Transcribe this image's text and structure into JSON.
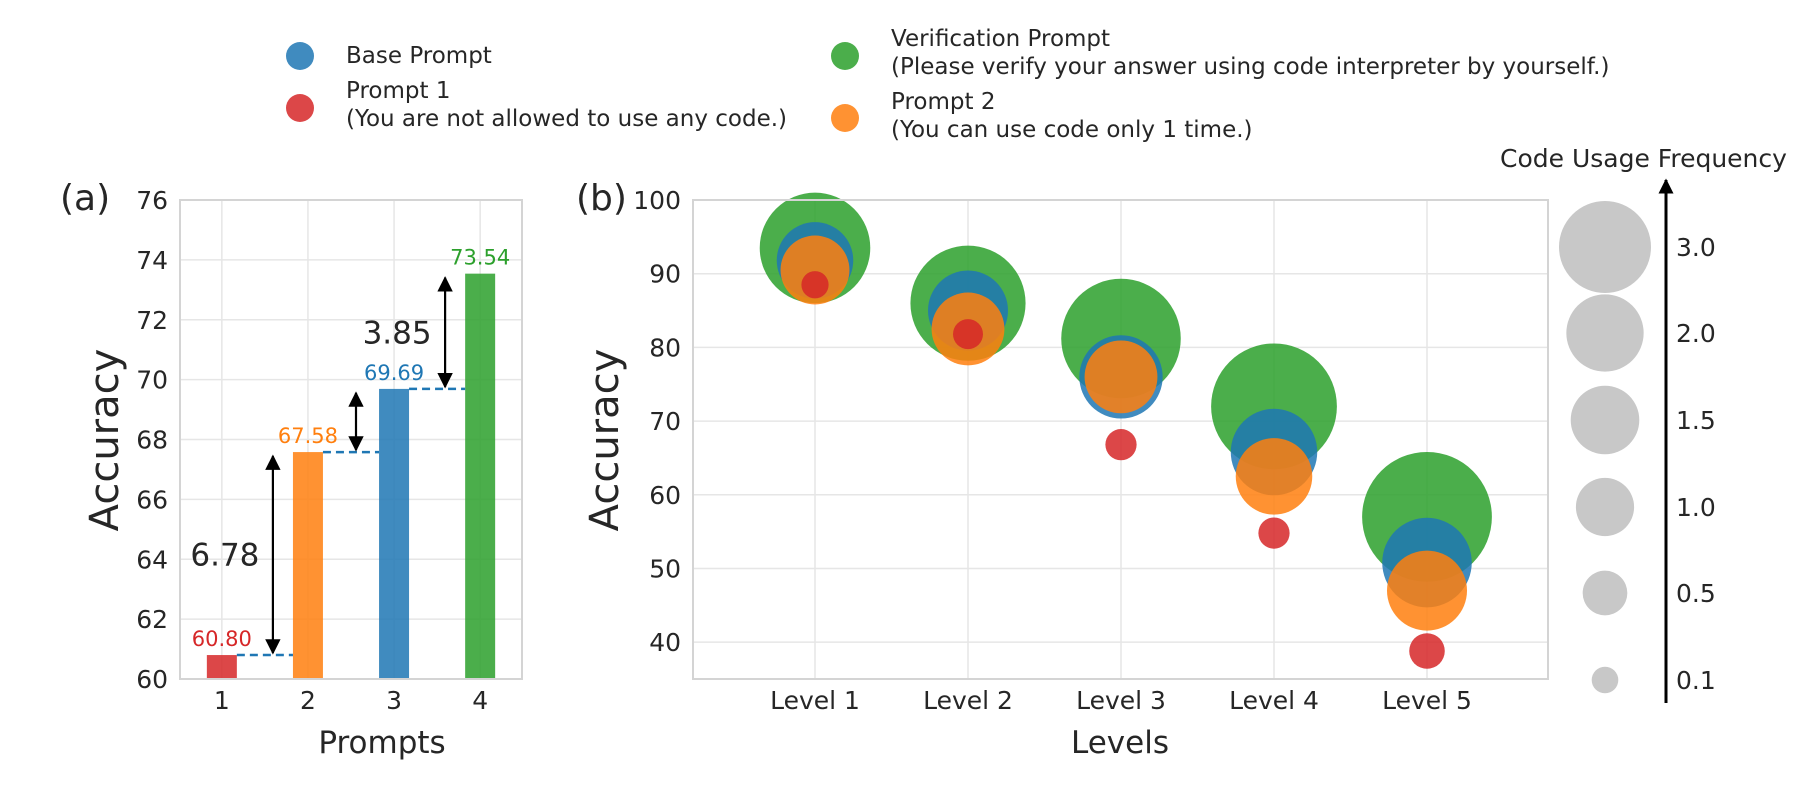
{
  "colors": {
    "base": "#1f77b4",
    "prompt1": "#d62728",
    "prompt2": "#ff7f0e",
    "verification": "#2ca02c",
    "neutral": "#c8c8c8"
  },
  "legend": {
    "base": "Base Prompt",
    "prompt1": "Prompt 1",
    "prompt1_note": "(You are not allowed to use any code.)",
    "verification": "Verification Prompt",
    "verification_note": "(Please verify your answer using code interpreter by yourself.)",
    "prompt2": "Prompt 2",
    "prompt2_note": "(You can use code only 1 time.)"
  },
  "chart_data": [
    {
      "panel": "(a)",
      "type": "bar",
      "xlabel": "Prompts",
      "ylabel": "Accuracy",
      "categories": [
        "1",
        "2",
        "3",
        "4"
      ],
      "values": [
        60.8,
        67.58,
        69.69,
        73.54
      ],
      "value_labels": [
        "60.80",
        "67.58",
        "69.69",
        "73.54"
      ],
      "bar_color_keys": [
        "prompt1",
        "prompt2",
        "base",
        "verification"
      ],
      "ylim": [
        60,
        76
      ],
      "yticks": [
        60,
        62,
        64,
        66,
        68,
        70,
        72,
        74,
        76
      ],
      "grid": true,
      "annotations": [
        {
          "text": "6.78",
          "from": 60.8,
          "to": 67.58
        },
        {
          "text": "3.85",
          "from": 69.69,
          "to": 73.54
        }
      ]
    },
    {
      "panel": "(b)",
      "type": "scatter",
      "xlabel": "Levels",
      "ylabel": "Accuracy",
      "categories": [
        "Level 1",
        "Level 2",
        "Level 3",
        "Level 4",
        "Level 5"
      ],
      "ylim": [
        35,
        100
      ],
      "yticks": [
        40,
        50,
        60,
        70,
        80,
        90,
        100
      ],
      "grid": true,
      "series": [
        {
          "name": "Verification Prompt",
          "color_key": "verification",
          "values": [
            93.5,
            86.0,
            81.2,
            72.0,
            57.0
          ],
          "code_usage": [
            2.1,
            2.3,
            2.5,
            2.8,
            3.0
          ]
        },
        {
          "name": "Base Prompt",
          "color_key": "base",
          "values": [
            91.8,
            85.0,
            76.0,
            65.8,
            50.8
          ],
          "code_usage": [
            0.9,
            1.0,
            1.1,
            1.2,
            1.3
          ]
        },
        {
          "name": "Prompt 2",
          "color_key": "prompt2",
          "values": [
            90.5,
            82.5,
            76.0,
            62.5,
            47.0
          ],
          "code_usage": [
            0.7,
            0.8,
            0.8,
            0.9,
            1.0
          ]
        },
        {
          "name": "Prompt 1",
          "color_key": "prompt1",
          "values": [
            88.5,
            81.8,
            66.8,
            54.8,
            38.8
          ],
          "code_usage": [
            0.05,
            0.07,
            0.08,
            0.08,
            0.12
          ]
        }
      ],
      "size_legend": {
        "title": "Code Usage Frequency",
        "values": [
          3.0,
          2.0,
          1.5,
          1.0,
          0.5,
          0.1
        ],
        "labels": [
          "3.0",
          "2.0",
          "1.5",
          "1.0",
          "0.5",
          "0.1"
        ]
      }
    }
  ]
}
